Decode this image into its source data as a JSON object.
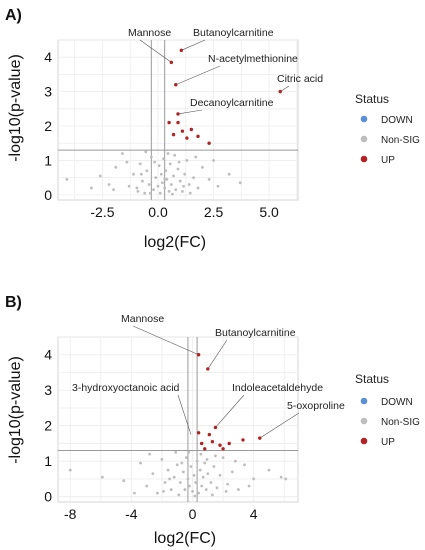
{
  "legend": {
    "title": "Status",
    "items": [
      {
        "label": "DOWN",
        "color": "#5b8fd9"
      },
      {
        "label": "Non-SIG",
        "color": "#bdbdbd"
      },
      {
        "label": "UP",
        "color": "#b22222"
      }
    ]
  },
  "chart_data": [
    {
      "panel": "A)",
      "type": "scatter",
      "xlabel": "log2(FC)",
      "ylabel": "-log10(p-value)",
      "xlim": [
        -4.5,
        6.3
      ],
      "ylim": [
        -0.15,
        4.5
      ],
      "xticks": [
        -2.5,
        0.0,
        2.5,
        5.0
      ],
      "xtick_labels": [
        "-2.5",
        "0.0",
        "2.5",
        "5.0"
      ],
      "yticks": [
        0,
        1,
        2,
        3,
        4
      ],
      "ytick_labels": [
        "0",
        "1",
        "2",
        "3",
        "4"
      ],
      "threshold_y": 1.3,
      "threshold_x": [
        -0.3,
        0.3
      ],
      "grid": true,
      "legend_position": "right",
      "up_points": [
        {
          "x": 0.6,
          "y": 3.85,
          "label": "Mannose"
        },
        {
          "x": 1.05,
          "y": 4.2,
          "label": "Butanoylcarnitine"
        },
        {
          "x": 0.8,
          "y": 3.2,
          "label": "N-acetylmethionine"
        },
        {
          "x": 5.5,
          "y": 3.0,
          "label": "Citric acid"
        },
        {
          "x": 0.9,
          "y": 2.35,
          "label": "Decanoylcarnitine"
        },
        {
          "x": 0.5,
          "y": 2.1,
          "label": ""
        },
        {
          "x": 0.9,
          "y": 2.1,
          "label": ""
        },
        {
          "x": 1.1,
          "y": 1.85,
          "label": ""
        },
        {
          "x": 1.5,
          "y": 1.9,
          "label": ""
        },
        {
          "x": 0.7,
          "y": 1.75,
          "label": ""
        },
        {
          "x": 1.3,
          "y": 1.65,
          "label": ""
        },
        {
          "x": 1.8,
          "y": 1.7,
          "label": ""
        },
        {
          "x": 2.3,
          "y": 1.5,
          "label": ""
        }
      ],
      "nonsig_points": [
        [
          -4.1,
          0.45
        ],
        [
          -2.6,
          0.55
        ],
        [
          -2.2,
          0.3
        ],
        [
          -1.9,
          0.8
        ],
        [
          -1.6,
          1.2
        ],
        [
          -1.3,
          0.25
        ],
        [
          -1.1,
          0.6
        ],
        [
          -0.9,
          0.1
        ],
        [
          -0.8,
          0.9
        ],
        [
          -0.7,
          0.4
        ],
        [
          -0.6,
          0.05
        ],
        [
          -0.5,
          0.7
        ],
        [
          -0.4,
          0.3
        ],
        [
          -0.3,
          1.1
        ],
        [
          -0.2,
          0.15
        ],
        [
          -0.1,
          0.5
        ],
        [
          0.0,
          0.25
        ],
        [
          0.05,
          0.85
        ],
        [
          0.1,
          0.05
        ],
        [
          0.15,
          0.6
        ],
        [
          0.2,
          0.35
        ],
        [
          0.25,
          1.05
        ],
        [
          0.3,
          0.2
        ],
        [
          0.35,
          0.7
        ],
        [
          0.4,
          0.45
        ],
        [
          0.5,
          0.1
        ],
        [
          0.55,
          0.9
        ],
        [
          0.6,
          0.3
        ],
        [
          0.7,
          0.55
        ],
        [
          0.8,
          0.15
        ],
        [
          0.9,
          0.75
        ],
        [
          1.0,
          0.4
        ],
        [
          1.1,
          0.1
        ],
        [
          1.2,
          0.6
        ],
        [
          1.3,
          1.0
        ],
        [
          1.4,
          0.3
        ],
        [
          1.6,
          0.5
        ],
        [
          1.8,
          0.2
        ],
        [
          2.0,
          0.8
        ],
        [
          2.3,
          0.45
        ],
        [
          2.7,
          0.25
        ],
        [
          3.2,
          0.6
        ],
        [
          -1.4,
          0.95
        ],
        [
          -0.95,
          0.2
        ],
        [
          0.45,
          1.2
        ],
        [
          -0.15,
          0.95
        ],
        [
          0.75,
          1.15
        ],
        [
          1.7,
          1.1
        ],
        [
          -2.0,
          0.15
        ],
        [
          2.5,
          1.0
        ],
        [
          -0.55,
          1.25
        ],
        [
          0.95,
          0.95
        ],
        [
          1.15,
          0.25
        ],
        [
          -0.75,
          0.6
        ],
        [
          3.7,
          0.35
        ],
        [
          -3.0,
          0.2
        ],
        [
          0.65,
          0.02
        ],
        [
          -0.35,
          0.05
        ],
        [
          1.45,
          0.05
        ],
        [
          0.3,
          0.45
        ]
      ],
      "annotations": [
        {
          "text": "Mannose",
          "tx": 128,
          "ty": 36,
          "px": 0.6,
          "py": 3.85
        },
        {
          "text": "Butanoylcarnitine",
          "tx": 193,
          "ty": 36,
          "px": 1.05,
          "py": 4.2
        },
        {
          "text": "N-acetylmethionine",
          "tx": 208,
          "ty": 62,
          "px": 0.8,
          "py": 3.2
        },
        {
          "text": "Citric acid",
          "tx": 277,
          "ty": 82,
          "px": 5.5,
          "py": 3.0
        },
        {
          "text": "Decanoylcarnitine",
          "tx": 190,
          "ty": 106,
          "px": 0.9,
          "py": 2.35
        }
      ]
    },
    {
      "panel": "B)",
      "type": "scatter",
      "xlabel": "log2(FC)",
      "ylabel": "-log10(p-value)",
      "xlim": [
        -8.8,
        6.9
      ],
      "ylim": [
        -0.15,
        4.5
      ],
      "xticks": [
        -8,
        -4,
        0,
        4
      ],
      "xtick_labels": [
        "-8",
        "-4",
        "0",
        "4"
      ],
      "yticks": [
        0,
        1,
        2,
        3,
        4
      ],
      "ytick_labels": [
        "0",
        "1",
        "2",
        "3",
        "4"
      ],
      "threshold_y": 1.3,
      "threshold_x": [
        -0.3,
        0.3
      ],
      "grid": true,
      "legend_position": "right",
      "up_points": [
        {
          "x": 0.4,
          "y": 4.0,
          "label": "Mannose"
        },
        {
          "x": 1.0,
          "y": 3.6,
          "label": "Butanoylcarnitine"
        },
        {
          "x": 1.5,
          "y": 1.95,
          "label": "Indoleacetaldehyde"
        },
        {
          "x": 4.4,
          "y": 1.65,
          "label": "5-oxoproline"
        },
        {
          "x": 0.4,
          "y": 1.8,
          "label": ""
        },
        {
          "x": 1.1,
          "y": 1.75,
          "label": ""
        },
        {
          "x": 0.6,
          "y": 1.5,
          "label": ""
        },
        {
          "x": 1.3,
          "y": 1.55,
          "label": ""
        },
        {
          "x": 1.8,
          "y": 1.45,
          "label": ""
        },
        {
          "x": 2.4,
          "y": 1.5,
          "label": ""
        },
        {
          "x": 3.3,
          "y": 1.6,
          "label": ""
        },
        {
          "x": 0.8,
          "y": 1.35,
          "label": ""
        },
        {
          "x": 2.0,
          "y": 1.35,
          "label": ""
        }
      ],
      "nonsig_points": [
        [
          -8.0,
          0.75
        ],
        [
          -5.9,
          0.55
        ],
        [
          -3.4,
          0.95
        ],
        [
          -3.0,
          0.3
        ],
        [
          -2.6,
          0.65
        ],
        [
          -2.3,
          0.1
        ],
        [
          -2.0,
          1.05
        ],
        [
          -1.8,
          0.4
        ],
        [
          -1.6,
          0.75
        ],
        [
          -1.4,
          0.2
        ],
        [
          -1.2,
          0.55
        ],
        [
          -1.0,
          0.9
        ],
        [
          -0.9,
          0.05
        ],
        [
          -0.8,
          0.4
        ],
        [
          -0.6,
          0.7
        ],
        [
          -0.5,
          0.2
        ],
        [
          -0.4,
          1.1
        ],
        [
          -0.3,
          0.5
        ],
        [
          -0.2,
          0.3
        ],
        [
          -0.1,
          0.85
        ],
        [
          0.0,
          0.15
        ],
        [
          0.1,
          0.6
        ],
        [
          0.2,
          0.4
        ],
        [
          0.3,
          1.0
        ],
        [
          0.4,
          0.1
        ],
        [
          0.5,
          0.75
        ],
        [
          0.6,
          0.3
        ],
        [
          0.7,
          0.55
        ],
        [
          0.8,
          0.95
        ],
        [
          0.9,
          0.2
        ],
        [
          1.0,
          0.65
        ],
        [
          1.2,
          0.4
        ],
        [
          1.4,
          0.85
        ],
        [
          1.6,
          0.25
        ],
        [
          1.8,
          0.6
        ],
        [
          2.0,
          1.1
        ],
        [
          2.3,
          0.35
        ],
        [
          2.6,
          0.7
        ],
        [
          3.0,
          0.2
        ],
        [
          3.4,
          0.9
        ],
        [
          4.0,
          0.5
        ],
        [
          5.0,
          0.75
        ],
        [
          5.8,
          0.55
        ],
        [
          6.1,
          0.5
        ],
        [
          -2.8,
          1.2
        ],
        [
          -1.1,
          1.25
        ],
        [
          0.55,
          1.2
        ],
        [
          1.5,
          1.15
        ],
        [
          -3.8,
          0.1
        ],
        [
          2.8,
          1.0
        ],
        [
          -0.7,
          0.95
        ],
        [
          1.3,
          0.05
        ],
        [
          -1.9,
          0.15
        ],
        [
          0.15,
          0.02
        ],
        [
          -0.25,
          1.25
        ],
        [
          3.7,
          0.3
        ],
        [
          -4.5,
          0.45
        ],
        [
          0.95,
          1.05
        ],
        [
          -1.5,
          0.5
        ],
        [
          2.2,
          0.15
        ]
      ],
      "annotations": [
        {
          "text": "Mannose",
          "tx": 121,
          "ty": 47,
          "px": 0.4,
          "py": 4.0
        },
        {
          "text": "Butanoylcarnitine",
          "tx": 215,
          "ty": 61,
          "px": 1.0,
          "py": 3.6
        },
        {
          "text": "3-hydroxyoctanoic acid",
          "tx": 72,
          "ty": 116,
          "px": -0.1,
          "py": 1.75
        },
        {
          "text": "Indoleacetaldehyde",
          "tx": 232,
          "ty": 116,
          "px": 1.5,
          "py": 1.95
        },
        {
          "text": "5-oxoproline",
          "tx": 287,
          "ty": 134,
          "px": 4.4,
          "py": 1.65
        }
      ]
    }
  ]
}
